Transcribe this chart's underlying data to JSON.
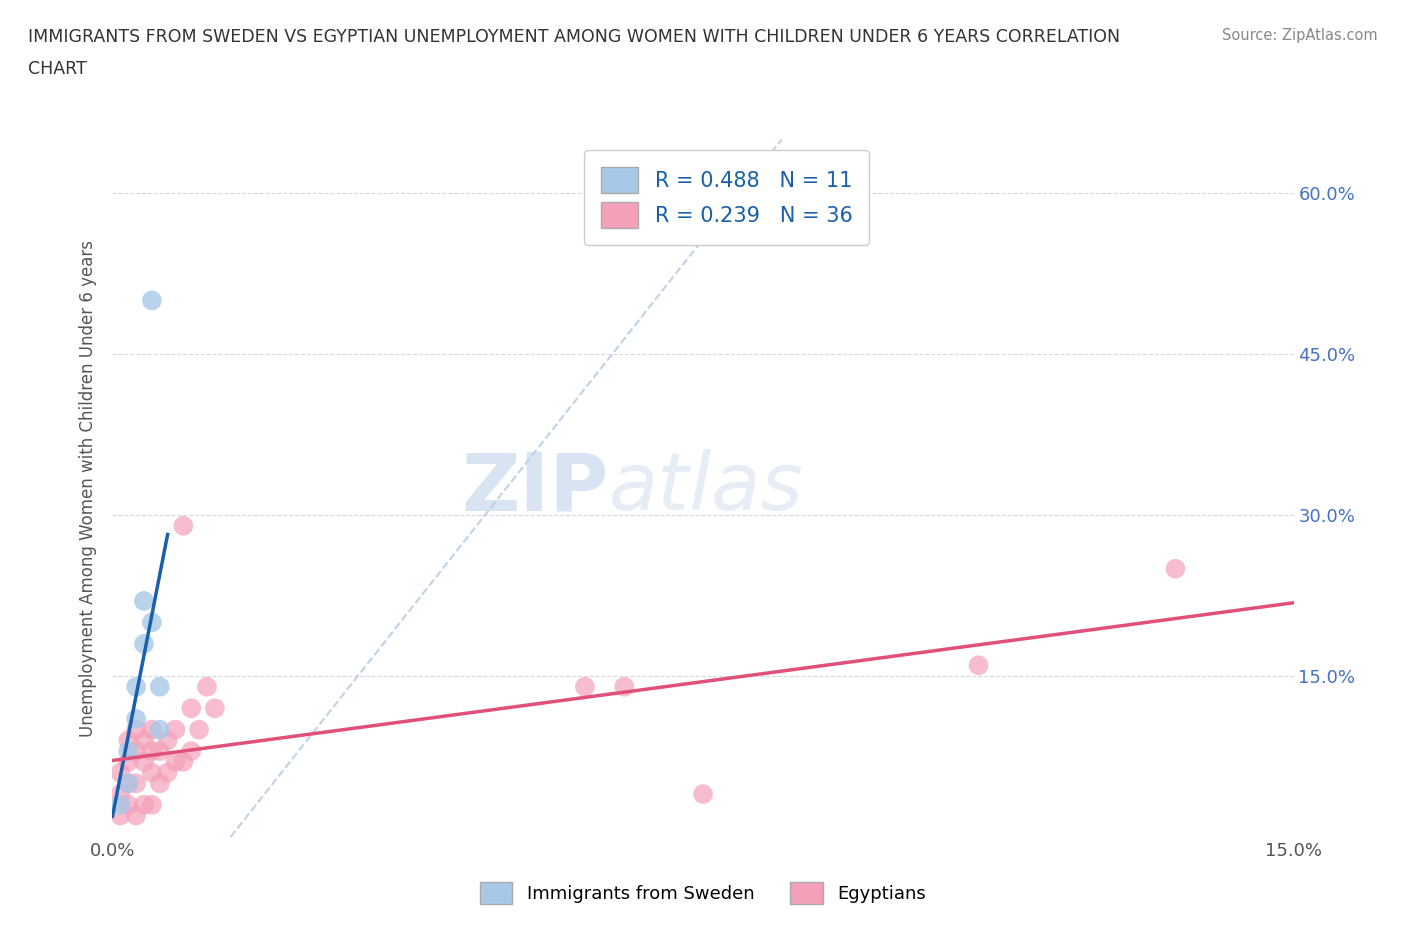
{
  "title_line1": "IMMIGRANTS FROM SWEDEN VS EGYPTIAN UNEMPLOYMENT AMONG WOMEN WITH CHILDREN UNDER 6 YEARS CORRELATION",
  "title_line2": "CHART",
  "source": "Source: ZipAtlas.com",
  "ylabel": "Unemployment Among Women with Children Under 6 years",
  "watermark_zip": "ZIP",
  "watermark_atlas": "atlas",
  "xlim": [
    0.0,
    0.15
  ],
  "ylim": [
    0.0,
    0.65
  ],
  "sweden_R": 0.488,
  "sweden_N": 11,
  "egypt_R": 0.239,
  "egypt_N": 36,
  "sweden_color": "#a8c8e8",
  "egypt_color": "#f4a0b8",
  "sweden_line_color": "#1a5faa",
  "egypt_line_color": "#e0507a",
  "diag_line_color": "#b0c8e0",
  "sweden_x": [
    0.001,
    0.002,
    0.002,
    0.003,
    0.003,
    0.004,
    0.004,
    0.005,
    0.005,
    0.006,
    0.006
  ],
  "sweden_y": [
    0.03,
    0.05,
    0.08,
    0.11,
    0.14,
    0.18,
    0.22,
    0.5,
    0.2,
    0.14,
    0.1
  ],
  "egypt_x": [
    0.001,
    0.001,
    0.001,
    0.002,
    0.002,
    0.002,
    0.002,
    0.003,
    0.003,
    0.003,
    0.003,
    0.004,
    0.004,
    0.004,
    0.005,
    0.005,
    0.005,
    0.005,
    0.006,
    0.006,
    0.007,
    0.007,
    0.008,
    0.008,
    0.009,
    0.009,
    0.01,
    0.01,
    0.011,
    0.012,
    0.013,
    0.06,
    0.065,
    0.075,
    0.11,
    0.135
  ],
  "egypt_y": [
    0.02,
    0.04,
    0.06,
    0.03,
    0.05,
    0.07,
    0.09,
    0.02,
    0.05,
    0.08,
    0.1,
    0.03,
    0.07,
    0.09,
    0.03,
    0.06,
    0.08,
    0.1,
    0.05,
    0.08,
    0.06,
    0.09,
    0.07,
    0.1,
    0.07,
    0.29,
    0.08,
    0.12,
    0.1,
    0.14,
    0.12,
    0.14,
    0.14,
    0.04,
    0.16,
    0.25
  ],
  "background_color": "#ffffff",
  "grid_color": "#d8d8d8",
  "y_tick_positions": [
    0.0,
    0.15,
    0.3,
    0.45,
    0.6
  ],
  "y_tick_labels": [
    "",
    "15.0%",
    "30.0%",
    "45.0%",
    "60.0%"
  ],
  "x_tick_positions": [
    0.0,
    0.15
  ],
  "x_tick_labels": [
    "0.0%",
    "15.0%"
  ]
}
